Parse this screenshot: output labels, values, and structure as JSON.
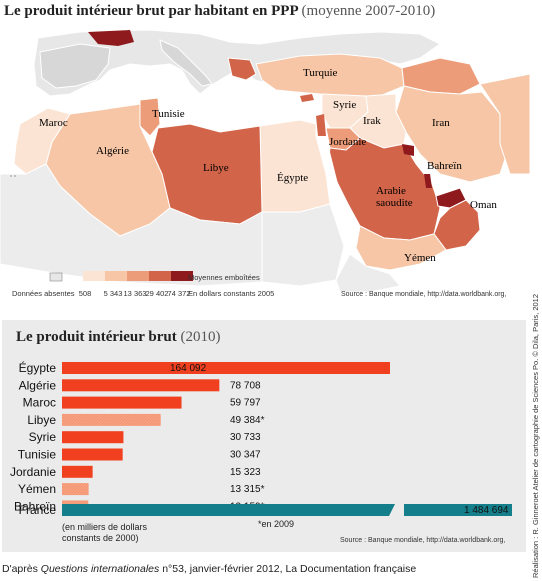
{
  "map": {
    "title": "Le produit intérieur brut par habitant en PPP",
    "subtitle": "(moyenne 2007-2010)",
    "countries": {
      "maroc": "Maroc",
      "algerie": "Algérie",
      "tunisie": "Tunisie",
      "libye": "Libye",
      "egypte": "Égypte",
      "turquie": "Turquie",
      "syrie": "Syrie",
      "irak": "Irak",
      "iran": "Iran",
      "jordanie": "Jordanie",
      "bahrein": "Bahreïn",
      "arabie": "Arabie",
      "saoudite": "saoudite",
      "oman": "Oman",
      "yemen": "Yémen"
    },
    "legend": {
      "absent_label": "Données absentes",
      "nested_label": "Moyennes emboîtées",
      "breaks": [
        "508",
        "5 343",
        "13 363",
        "29 402",
        "74 372"
      ],
      "unit": "En dollars constants 2005",
      "colors": [
        "#fbe4d3",
        "#f6c6a6",
        "#ec9c78",
        "#d2644a",
        "#8e1a1e"
      ]
    },
    "source": "Source : Banque mondiale, http://data.worldbank.org,"
  },
  "side_credit": "Réalisation : R. Ginneroet Atelier de cartographie de Sciences Po. © Dila, Paris, 2012",
  "chart_data": {
    "type": "bar",
    "title": "Le produit intérieur brut",
    "subtitle": "(2010)",
    "categories": [
      "Égypte",
      "Algérie",
      "Maroc",
      "Libye",
      "Syrie",
      "Tunisie",
      "Jordanie",
      "Yémen",
      "Bahreïn"
    ],
    "values": [
      164092,
      78708,
      59797,
      49384,
      30733,
      30347,
      15323,
      13315,
      13159
    ],
    "value_labels": [
      "164 092",
      "78 708",
      "59 797",
      "49 384*",
      "30 733",
      "30 347",
      "15 323",
      "13 315*",
      "13 159*"
    ],
    "estimated": [
      false,
      false,
      false,
      true,
      false,
      false,
      false,
      true,
      true
    ],
    "reference": {
      "name": "France",
      "value": 1484694,
      "value_label": "1 484 694"
    },
    "unit_note": "(en milliers de dollars constants de 2000)",
    "footnote": "*en 2009",
    "source": "Source : Banque mondiale, http://data.worldbank.org,",
    "colors": {
      "bar": "#f0401f",
      "estimated": "#f6a383",
      "france": "#147f8a"
    }
  },
  "credit": {
    "prefix": "D'après ",
    "publication": "Questions internationales",
    "rest": " n°53, janvier-février 2012, La Documentation française"
  }
}
